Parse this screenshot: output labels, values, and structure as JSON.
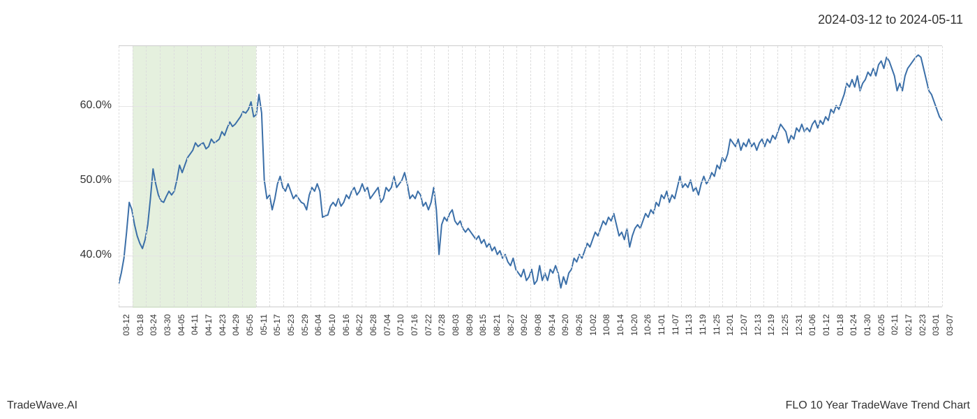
{
  "header": {
    "date_range": "2024-03-12 to 2024-05-11"
  },
  "footer": {
    "left": "TradeWave.AI",
    "right": "FLO 10 Year TradeWave Trend Chart"
  },
  "chart": {
    "type": "line",
    "background_color": "#ffffff",
    "line_color": "#3b6fa8",
    "line_width": 2,
    "grid_color": "#e5e5e5",
    "x_grid_color": "#dddddd",
    "highlight_fill": "#d4e6c8",
    "highlight_opacity": 0.6,
    "text_color": "#333333",
    "y_axis": {
      "min": 33,
      "max": 68,
      "ticks": [
        40,
        50,
        60
      ],
      "tick_labels": [
        "40.0%",
        "50.0%",
        "60.0%"
      ],
      "label_fontsize": 16
    },
    "x_axis": {
      "labels": [
        "03-12",
        "03-18",
        "03-24",
        "03-30",
        "04-05",
        "04-11",
        "04-17",
        "04-23",
        "04-29",
        "05-05",
        "05-11",
        "05-17",
        "05-23",
        "05-29",
        "06-04",
        "06-10",
        "06-16",
        "06-22",
        "06-28",
        "07-04",
        "07-10",
        "07-16",
        "07-22",
        "07-28",
        "08-03",
        "08-09",
        "08-15",
        "08-21",
        "08-27",
        "09-02",
        "09-08",
        "09-14",
        "09-20",
        "09-26",
        "10-02",
        "10-08",
        "10-14",
        "10-20",
        "10-26",
        "11-01",
        "11-07",
        "11-13",
        "11-19",
        "11-25",
        "12-01",
        "12-07",
        "12-13",
        "12-19",
        "12-25",
        "12-31",
        "01-06",
        "01-12",
        "01-18",
        "01-24",
        "01-30",
        "02-05",
        "02-11",
        "02-17",
        "02-23",
        "03-01",
        "03-07"
      ],
      "label_fontsize": 12,
      "rotation": -90
    },
    "highlight_region": {
      "start_index": 1,
      "end_index": 10
    },
    "series": [
      {
        "name": "trend",
        "color": "#3b6fa8",
        "values": [
          36.0,
          37.5,
          39.5,
          43.0,
          47.0,
          46.0,
          44.0,
          42.5,
          41.5,
          40.8,
          42.0,
          44.0,
          47.5,
          51.5,
          49.5,
          48.0,
          47.2,
          47.0,
          47.8,
          48.5,
          48.0,
          48.5,
          50.0,
          52.0,
          51.0,
          52.0,
          53.0,
          53.5,
          54.0,
          55.0,
          54.5,
          54.8,
          55.0,
          54.2,
          54.5,
          55.5,
          55.0,
          55.2,
          55.5,
          56.5,
          56.0,
          57.0,
          57.8,
          57.2,
          57.5,
          58.0,
          58.5,
          59.2,
          59.0,
          59.5,
          60.5,
          58.5,
          58.8,
          61.5,
          59.0,
          50.0,
          47.5,
          48.0,
          46.0,
          47.5,
          49.5,
          50.5,
          49.0,
          48.5,
          49.5,
          48.5,
          47.5,
          48.0,
          47.5,
          47.0,
          46.8,
          46.0,
          48.0,
          49.0,
          48.5,
          49.5,
          48.5,
          45.0,
          45.2,
          45.3,
          46.5,
          47.0,
          46.5,
          47.5,
          46.5,
          47.0,
          48.0,
          47.5,
          48.5,
          49.0,
          48.0,
          48.5,
          49.5,
          48.5,
          49.0,
          47.5,
          48.0,
          48.5,
          49.0,
          47.0,
          47.5,
          49.0,
          48.5,
          49.0,
          50.5,
          49.0,
          49.5,
          50.0,
          51.0,
          49.5,
          47.5,
          48.0,
          47.5,
          48.5,
          48.0,
          46.5,
          47.0,
          46.0,
          47.0,
          49.0,
          46.0,
          40.0,
          44.0,
          45.0,
          44.5,
          45.5,
          46.0,
          44.5,
          44.0,
          44.5,
          43.5,
          43.0,
          43.5,
          43.0,
          42.5,
          42.0,
          42.5,
          41.5,
          42.0,
          41.0,
          41.5,
          40.5,
          41.0,
          40.0,
          40.5,
          39.5,
          40.0,
          39.0,
          38.5,
          39.5,
          38.0,
          37.5,
          37.0,
          38.0,
          36.5,
          37.0,
          38.0,
          36.0,
          36.5,
          38.5,
          36.5,
          37.5,
          36.5,
          38.0,
          37.5,
          38.5,
          37.5,
          35.5,
          37.0,
          36.0,
          37.5,
          38.0,
          39.5,
          39.0,
          40.0,
          39.5,
          40.5,
          41.5,
          41.0,
          42.0,
          43.0,
          42.5,
          43.5,
          44.5,
          44.0,
          45.0,
          44.5,
          45.5,
          44.0,
          42.5,
          43.0,
          42.0,
          43.5,
          41.0,
          42.5,
          43.5,
          44.0,
          43.5,
          44.5,
          45.5,
          45.0,
          46.0,
          45.5,
          47.0,
          46.5,
          48.0,
          47.5,
          48.5,
          47.0,
          48.0,
          47.5,
          49.0,
          50.5,
          49.0,
          49.5,
          49.0,
          50.0,
          48.5,
          49.0,
          48.0,
          49.5,
          50.5,
          49.5,
          50.0,
          51.0,
          50.5,
          52.0,
          51.5,
          53.0,
          52.5,
          53.5,
          55.5,
          55.0,
          54.5,
          55.5,
          54.0,
          55.0,
          54.5,
          55.5,
          54.5,
          55.0,
          54.0,
          55.0,
          55.5,
          54.5,
          55.5,
          55.0,
          56.0,
          55.5,
          56.5,
          57.5,
          57.0,
          56.5,
          55.0,
          56.0,
          55.5,
          57.0,
          56.5,
          57.5,
          56.5,
          57.0,
          56.5,
          57.5,
          58.0,
          57.0,
          58.0,
          57.5,
          58.5,
          58.0,
          59.5,
          59.0,
          60.0,
          59.5,
          60.5,
          61.5,
          63.0,
          62.5,
          63.5,
          62.5,
          64.0,
          62.0,
          63.0,
          63.5,
          64.5,
          64.0,
          65.0,
          64.0,
          65.5,
          66.0,
          65.0,
          66.5,
          66.0,
          65.0,
          64.0,
          62.0,
          63.0,
          62.0,
          64.0,
          65.0,
          65.5,
          66.0,
          66.5,
          66.8,
          66.5,
          65.0,
          63.5,
          62.0,
          61.5,
          60.5,
          59.5,
          58.5,
          58.0
        ]
      }
    ]
  }
}
